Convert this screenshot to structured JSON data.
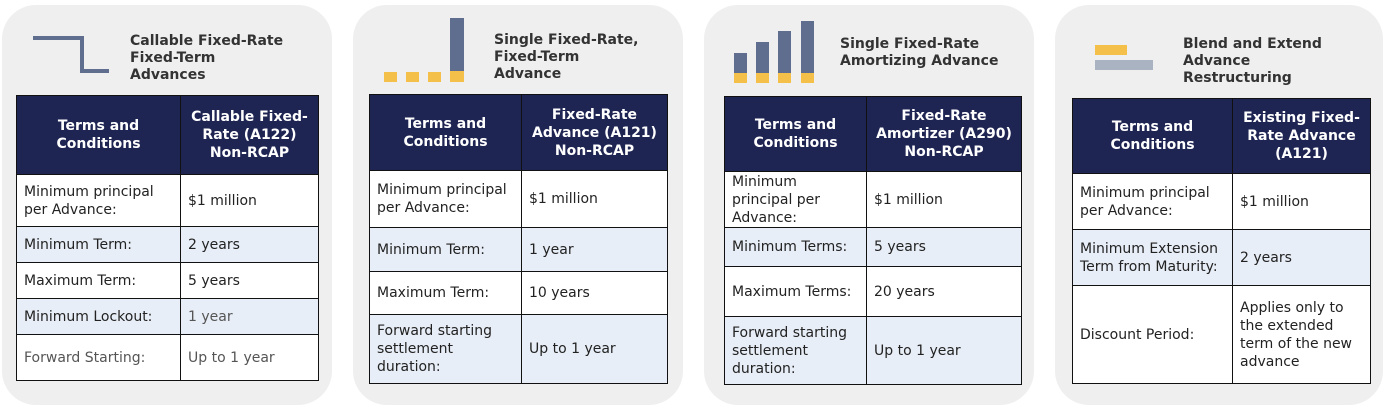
{
  "colors": {
    "header_bg": "#1f2553",
    "alt_row_bg": "#e8eef7",
    "icon_slate": "#5f6e8f",
    "icon_gold": "#f5c04a",
    "icon_gray": "#aab3c2",
    "card_bg": "#efefef"
  },
  "cards": [
    {
      "title": "Callable Fixed-Rate\nFixed-Term\nAdvances",
      "icon": "step-line-icon",
      "headers": [
        "Terms and Conditions",
        "Callable Fixed-Rate (A122) Non-RCAP"
      ],
      "rows": [
        {
          "term": "Minimum principal per Advance:",
          "value": "$1 million"
        },
        {
          "term": "Minimum Term:",
          "value": "2 years"
        },
        {
          "term": "Maximum Term:",
          "value": "5 years"
        },
        {
          "term": "Minimum Lockout:",
          "value": "1 year"
        },
        {
          "term": "Forward Starting:",
          "value": "Up to 1 year"
        }
      ]
    },
    {
      "title": "Single Fixed-Rate,\nFixed-Term\nAdvance",
      "icon": "bullet-repayment-bar-icon",
      "headers": [
        "Terms and Conditions",
        "Fixed-Rate Advance (A121) Non-RCAP"
      ],
      "rows": [
        {
          "term": "Minimum principal per Advance:",
          "value": "$1 million"
        },
        {
          "term": "Minimum Term:",
          "value": "1 year"
        },
        {
          "term": "Maximum Term:",
          "value": "10 years"
        },
        {
          "term": "Forward starting settlement duration:",
          "value": "Up to 1 year"
        }
      ]
    },
    {
      "title": "Single Fixed-Rate\nAmortizing Advance",
      "icon": "amortizing-bars-icon",
      "headers": [
        "Terms and Conditions",
        "Fixed-Rate Amortizer (A290) Non-RCAP"
      ],
      "rows": [
        {
          "term": "Minimum principal per Advance:",
          "value": "$1 million"
        },
        {
          "term": "Minimum Terms:",
          "value": "5 years"
        },
        {
          "term": "Maximum Terms:",
          "value": "20 years"
        },
        {
          "term": "Forward starting settlement duration:",
          "value": "Up to 1 year"
        }
      ]
    },
    {
      "title": "Blend and Extend\nAdvance\nRestructuring",
      "icon": "blend-extend-icon",
      "headers": [
        "Terms and Conditions",
        "Existing Fixed-Rate Advance (A121)"
      ],
      "rows": [
        {
          "term": "Minimum principal per Advance:",
          "value": "$1 million"
        },
        {
          "term": "Minimum Extension Term from Maturity:",
          "value": "2 years"
        },
        {
          "term": "Discount Period:",
          "value": "Applies only to the extended term of the new advance"
        }
      ]
    }
  ]
}
